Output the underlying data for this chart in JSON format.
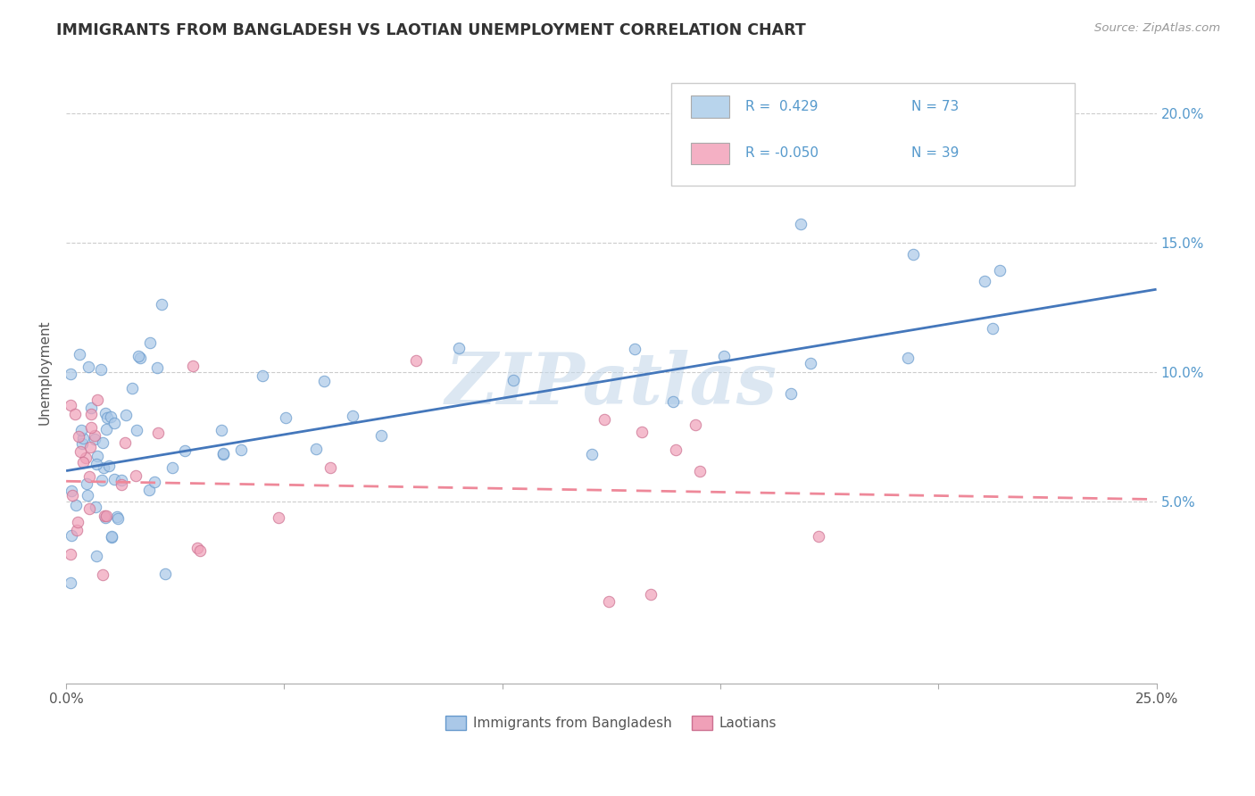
{
  "title": "IMMIGRANTS FROM BANGLADESH VS LAOTIAN UNEMPLOYMENT CORRELATION CHART",
  "source_text": "Source: ZipAtlas.com",
  "ylabel": "Unemployment",
  "watermark": "ZIPatlas",
  "xlim": [
    0.0,
    0.25
  ],
  "ylim": [
    -0.02,
    0.22
  ],
  "xticks": [
    0.0,
    0.05,
    0.1,
    0.15,
    0.2,
    0.25
  ],
  "xtick_labels": [
    "0.0%",
    "",
    "",
    "",
    "",
    "25.0%"
  ],
  "yticks": [
    0.05,
    0.1,
    0.15,
    0.2
  ],
  "ytick_labels": [
    "5.0%",
    "10.0%",
    "15.0%",
    "20.0%"
  ],
  "legend_entries": [
    {
      "label": "Immigrants from Bangladesh",
      "R": " 0.429",
      "N": "73",
      "color": "#b8d4ec"
    },
    {
      "label": "Laotians",
      "R": "-0.050",
      "N": "39",
      "color": "#f4b0c4"
    }
  ],
  "series1_color": "#aac8e8",
  "series1_edge": "#6699cc",
  "series2_color": "#f0a0b8",
  "series2_edge": "#cc7090",
  "trendline1_color": "#4477bb",
  "trendline2_color": "#ee8899",
  "trendline1_y0": 0.062,
  "trendline1_y1": 0.132,
  "trendline2_y0": 0.058,
  "trendline2_y1": 0.051,
  "R1": 0.429,
  "N1": 73,
  "R2": -0.05,
  "N2": 39,
  "background_color": "#ffffff",
  "grid_color": "#cccccc",
  "title_color": "#333333",
  "ytick_color": "#5599cc",
  "xtick_color": "#555555"
}
